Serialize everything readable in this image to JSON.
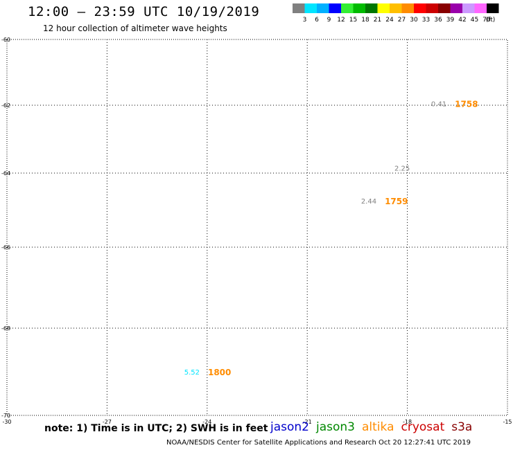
{
  "title": "12:00 – 23:59 UTC 10/19/2019",
  "subtitle": "12 hour collection of altimeter wave heights",
  "colorbar": {
    "labels": [
      "3",
      "6",
      "9",
      "12",
      "15",
      "18",
      "21",
      "24",
      "27",
      "30",
      "33",
      "36",
      "39",
      "42",
      "45",
      "70"
    ],
    "unit": "(ft)",
    "colors": [
      "#808080",
      "#00e5ff",
      "#00b0ff",
      "#0000ff",
      "#33ee33",
      "#00bb00",
      "#007700",
      "#ffff00",
      "#ffbf00",
      "#ff8c00",
      "#ff0000",
      "#cc0000",
      "#880000",
      "#9900aa",
      "#cc99ff",
      "#ff66ff",
      "#000000"
    ]
  },
  "chart_data": {
    "type": "scatter",
    "title": "12:00 – 23:59 UTC 10/19/2019",
    "subtitle": "12 hour collection of altimeter wave heights",
    "xlim": [
      -30,
      -15
    ],
    "ylim": [
      -70,
      -60
    ],
    "x_ticks": [
      "-30",
      "-27",
      "-24",
      "-21",
      "-18",
      "-15"
    ],
    "y_ticks": [
      "-60",
      "-62",
      "-64",
      "-66",
      "-68",
      "-70"
    ],
    "grid": true,
    "points": [
      {
        "lon": -16.7,
        "lat": -61.95,
        "swh": "0.41",
        "swh_color": "#808080",
        "time": "1758",
        "time_color": "#ff8c00"
      },
      {
        "lon": -17.8,
        "lat": -63.85,
        "swh": "2.25",
        "swh_color": "#808080",
        "time": "",
        "time_color": "#ff8c00"
      },
      {
        "lon": -18.8,
        "lat": -64.75,
        "swh": "2.44",
        "swh_color": "#808080",
        "time": "1759",
        "time_color": "#ff8c00"
      },
      {
        "lon": -24.1,
        "lat": -69.0,
        "swh": "5.52",
        "swh_color": "#00e5ff",
        "time": "1800",
        "time_color": "#ff8c00"
      }
    ]
  },
  "footer": {
    "note": "note: 1) Time is in UTC; 2) SWH is in feet",
    "credit": "NOAA/NESDIS Center for Satellite Applications and Research    Oct 20 12:27:41 UTC 2019"
  },
  "satellites": [
    {
      "name": "jason2",
      "color": "#0000cc"
    },
    {
      "name": "jason3",
      "color": "#008800"
    },
    {
      "name": "altika",
      "color": "#ff8c00"
    },
    {
      "name": "cryosat",
      "color": "#cc0000"
    },
    {
      "name": "s3a",
      "color": "#880000"
    }
  ]
}
